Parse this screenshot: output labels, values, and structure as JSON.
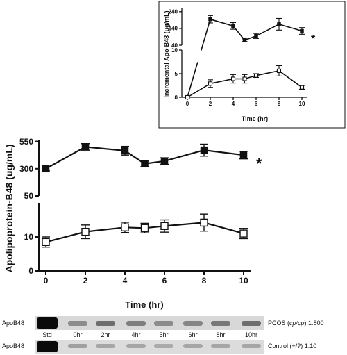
{
  "chart_data": [
    {
      "type": "line",
      "title": "",
      "xlabel": "Time (hr)",
      "ylabel": "Incremental Apo-B48 (ug/mL)",
      "x_ticks": [
        "0",
        "2",
        "4",
        "6",
        "8",
        "10"
      ],
      "y_ticks_upper": [
        "40",
        "140",
        "240"
      ],
      "y_ticks_lower": [
        "0",
        "5",
        "10"
      ],
      "ylim_upper": [
        40,
        260
      ],
      "ylim_lower": [
        0,
        10
      ],
      "grid": false,
      "annotation": "*",
      "series": [
        {
          "marker": "filled-square",
          "panel": "upper",
          "x": [
            2,
            4,
            5,
            6,
            8,
            10
          ],
          "y": [
            195,
            155,
            70,
            95,
            165,
            125
          ],
          "err": [
            22,
            20,
            8,
            15,
            35,
            20
          ],
          "extra_lower": {
            "x": 0,
            "y": 0
          }
        },
        {
          "marker": "open-square",
          "panel": "lower",
          "x": [
            0,
            2,
            4,
            5,
            6,
            8,
            10
          ],
          "y": [
            0,
            2.9,
            3.9,
            3.9,
            4.6,
            5.6,
            2.1
          ],
          "err": [
            0.3,
            0.8,
            0.9,
            0.9,
            0.4,
            1.1,
            0.4
          ]
        }
      ]
    },
    {
      "type": "line",
      "title": "",
      "xlabel": "Time (hr)",
      "ylabel": "Apolipoprotein-B48 (ug/mL)",
      "x_ticks": [
        "0",
        "2",
        "4",
        "6",
        "8",
        "10"
      ],
      "y_ticks_upper": [
        "50",
        "300",
        "550"
      ],
      "y_ticks_lower": [
        "0",
        "10"
      ],
      "ylim_upper": [
        50,
        560
      ],
      "ylim_lower": [
        0,
        20
      ],
      "grid": false,
      "annotation": "*",
      "series": [
        {
          "marker": "filled-square",
          "panel": "upper",
          "x": [
            0,
            2,
            4,
            5,
            6,
            8,
            10
          ],
          "y": [
            300,
            500,
            465,
            345,
            370,
            470,
            425
          ],
          "err": [
            20,
            30,
            40,
            25,
            30,
            55,
            35
          ]
        },
        {
          "marker": "open-square",
          "panel": "lower",
          "x": [
            0,
            2,
            4,
            5,
            6,
            8,
            10
          ],
          "y": [
            8.5,
            11.5,
            12.8,
            12.6,
            13.2,
            14.2,
            11.0
          ],
          "err": [
            1.5,
            2.0,
            1.5,
            1.4,
            1.8,
            2.5,
            1.5
          ]
        }
      ]
    }
  ],
  "blot": {
    "row1_label": "ApoB48",
    "row1_right": "PCOS (",
    "row1_right_italic": "cp/cp",
    "row1_right_end": ") 1:800",
    "row2_label": "ApoB48",
    "row2_right": "Control (+/?) 1:10",
    "lane_labels": [
      "Std",
      "0hr",
      "2hr",
      "4hr",
      "5hr",
      "6hr",
      "8hr",
      "10hr"
    ],
    "row1_band_intensity": [
      1.0,
      0.35,
      0.5,
      0.42,
      0.35,
      0.38,
      0.45,
      0.5
    ],
    "row2_band_intensity": [
      1.0,
      0.25,
      0.22,
      0.22,
      0.2,
      0.22,
      0.22,
      0.22
    ]
  }
}
